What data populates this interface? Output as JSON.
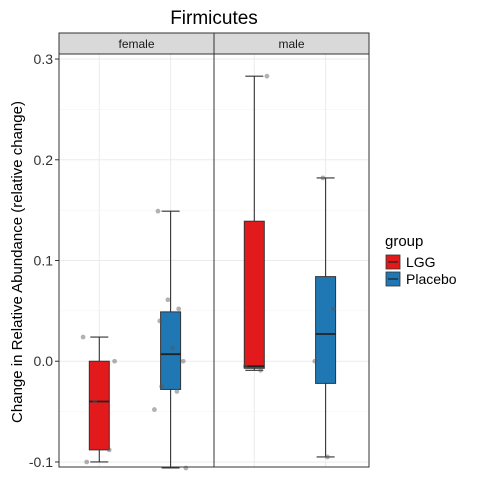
{
  "chart_data": {
    "type": "boxplot",
    "title": "Firmicutes",
    "ylabel": "Change in Relative Abundance (relative change)",
    "xlabel": "",
    "ylim": [
      -0.105,
      0.305
    ],
    "yticks": [
      -0.1,
      0.0,
      0.1,
      0.2,
      0.3
    ],
    "ytick_labels": [
      "-0.1",
      "0.0",
      "0.1",
      "0.2",
      "0.3"
    ],
    "grid": true,
    "legend": {
      "title": "group",
      "position": "right",
      "entries": [
        {
          "label": "LGG",
          "color": "#E31A1C"
        },
        {
          "label": "Placebo",
          "color": "#1F78B4"
        }
      ]
    },
    "panels": [
      {
        "label": "female",
        "boxes": [
          {
            "group": "LGG",
            "min": -0.1,
            "q1": -0.088,
            "median": -0.04,
            "q3": 0.0,
            "max": 0.024,
            "points": [
              -0.1,
              -0.088,
              -0.04,
              0.0,
              0.024
            ]
          },
          {
            "group": "Placebo",
            "min": -0.106,
            "q1": -0.028,
            "median": 0.007,
            "q3": 0.049,
            "max": 0.149,
            "points": [
              -0.106,
              -0.048,
              -0.03,
              -0.025,
              0.0,
              0.013,
              0.04,
              0.052,
              0.061,
              0.149
            ]
          }
        ]
      },
      {
        "label": "male",
        "boxes": [
          {
            "group": "LGG",
            "min": -0.009,
            "q1": -0.007,
            "median": -0.005,
            "q3": 0.139,
            "max": 0.283,
            "points": [
              -0.009,
              -0.005,
              0.283
            ]
          },
          {
            "group": "Placebo",
            "min": -0.095,
            "q1": -0.022,
            "median": 0.027,
            "q3": 0.084,
            "max": 0.182,
            "points": [
              -0.095,
              0.0,
              0.052,
              0.182
            ]
          }
        ]
      }
    ]
  }
}
